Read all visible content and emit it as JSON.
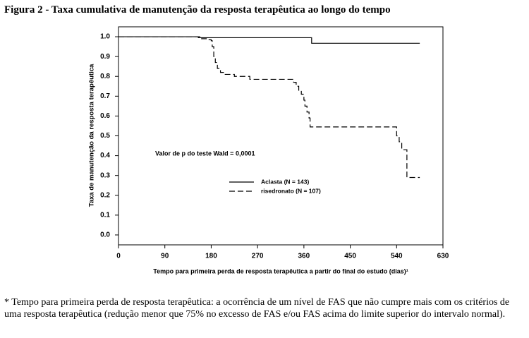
{
  "chart_data": {
    "type": "line",
    "title": "Figura 2 - Taxa cumulativa de manutenção da resposta terapêutica ao longo do tempo",
    "xlabel": "Tempo para primeira perda de resposta terapêutica a partir do final do estudo (dias)¹",
    "ylabel": "Taxa de manutenção da resposta terapêutica",
    "annotation": "Valor de p do teste Wald = 0,0001",
    "footnote": "* Tempo para primeira perda de resposta terapêutica: a ocorrência de um nível de FAS que não cumpre mais com os critérios de uma resposta terapêutica (redução menor que 75% no excesso de FAS e/ou FAS acima do limite superior do intervalo normal).",
    "step": true,
    "xlim": [
      0,
      630
    ],
    "xticks": [
      0,
      90,
      180,
      270,
      360,
      450,
      540,
      630
    ],
    "ylim": [
      -0.05,
      1.05
    ],
    "yticks": [
      {
        "value": 0,
        "label": "0.0"
      },
      {
        "value": 0.1,
        "label": "0.1"
      },
      {
        "value": 0.2,
        "label": "0.2"
      },
      {
        "value": 0.3,
        "label": "0.3"
      },
      {
        "value": 0.4,
        "label": "0.4"
      },
      {
        "value": 0.5,
        "label": "0.5"
      },
      {
        "value": 0.6,
        "label": "0.6"
      },
      {
        "value": 0.7,
        "label": "0.7"
      },
      {
        "value": 0.8,
        "label": "0.8"
      },
      {
        "value": 0.9,
        "label": "0.9"
      },
      {
        "value": 1,
        "label": "1.0"
      }
    ],
    "series": [
      {
        "name": "Aclasta (N = 143)",
        "color": "#000000",
        "linestyle": "solid",
        "x": [
          0,
          155,
          375,
          585
        ],
        "values": [
          1.0,
          0.995,
          0.967,
          0.967
        ]
      },
      {
        "name": "risedronato (N = 107)",
        "color": "#000000",
        "linestyle": "dashed",
        "x": [
          0,
          160,
          175,
          180,
          182,
          185,
          188,
          192,
          198,
          205,
          225,
          255,
          340,
          345,
          350,
          355,
          360,
          362,
          366,
          370,
          372,
          540,
          545,
          550,
          560,
          585
        ],
        "values": [
          1.0,
          0.99,
          0.985,
          0.98,
          0.95,
          0.9,
          0.87,
          0.84,
          0.82,
          0.81,
          0.8,
          0.785,
          0.77,
          0.75,
          0.73,
          0.71,
          0.68,
          0.65,
          0.62,
          0.59,
          0.545,
          0.5,
          0.47,
          0.43,
          0.29,
          0.29
        ]
      }
    ]
  }
}
